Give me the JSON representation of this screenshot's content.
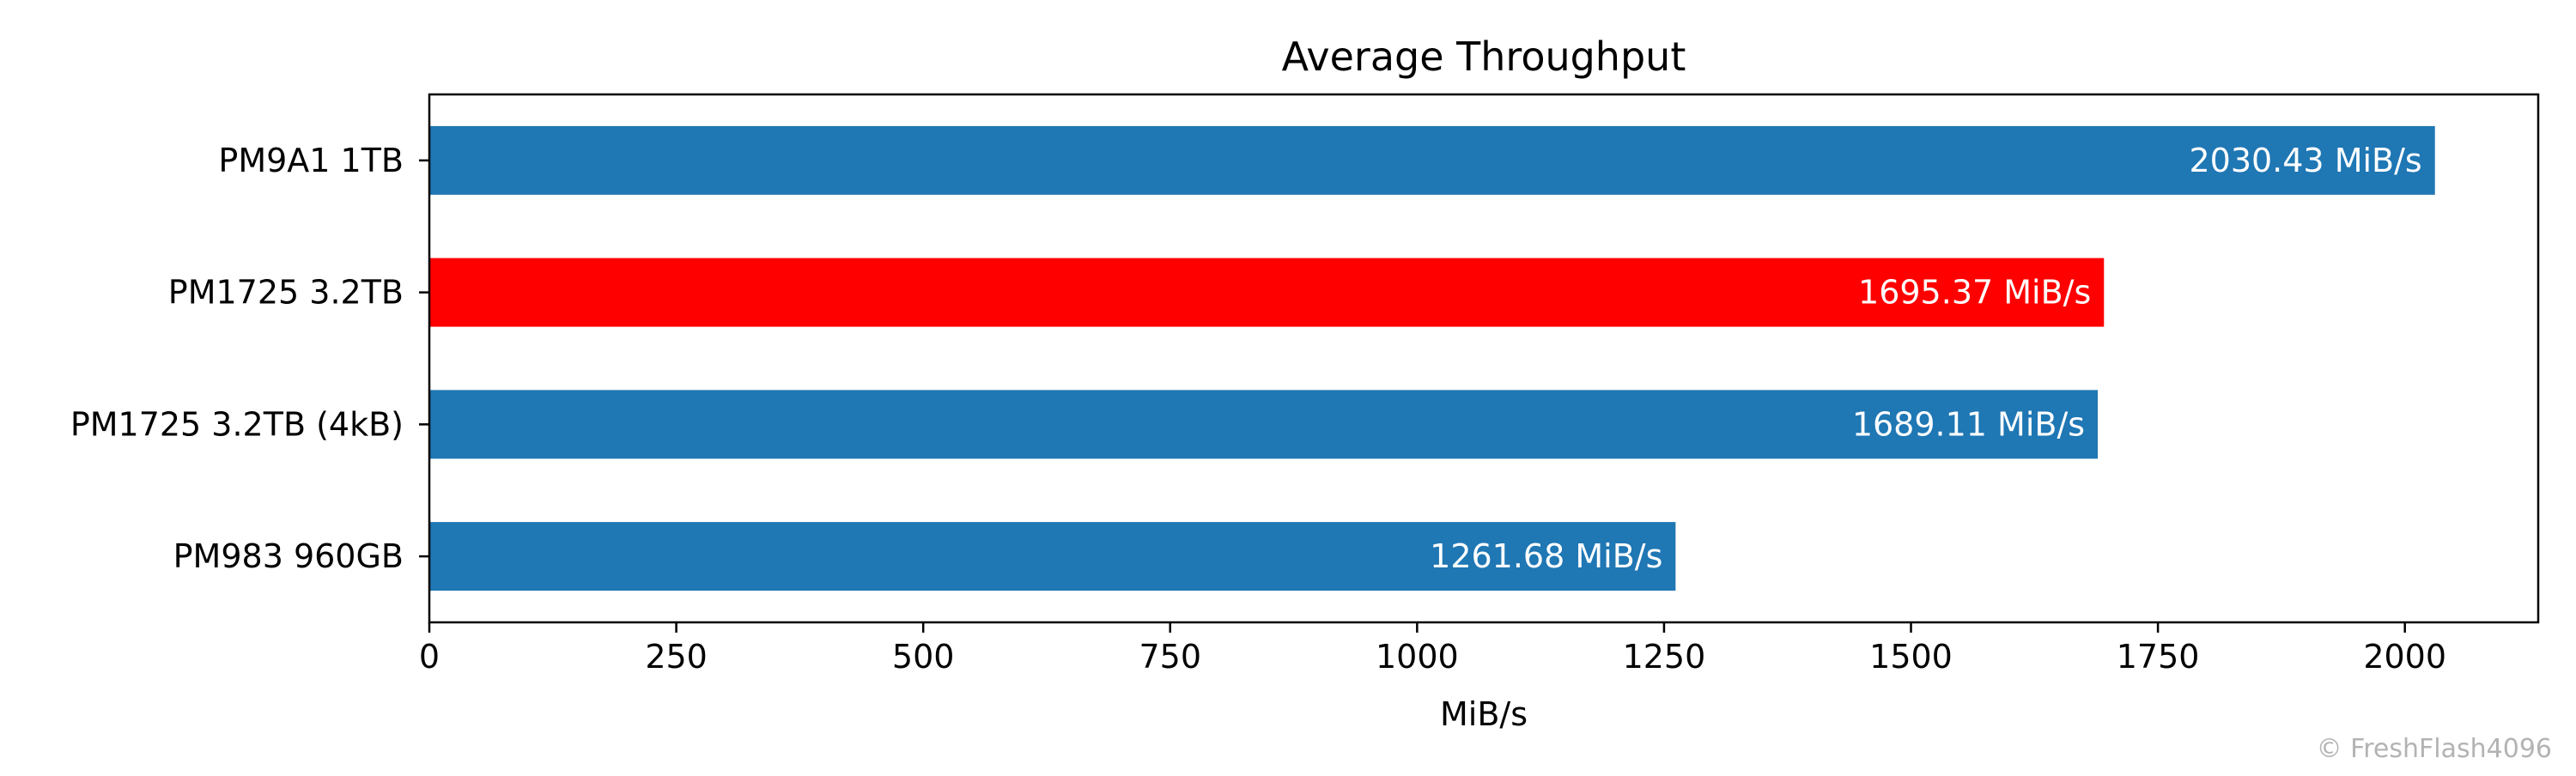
{
  "chart_data": {
    "type": "bar",
    "orientation": "horizontal",
    "title": "Average Throughput",
    "xlabel": "MiB/s",
    "ylabel": "",
    "xlim": [
      0,
      2135
    ],
    "xticks": [
      0,
      250,
      500,
      750,
      1000,
      1250,
      1500,
      1750,
      2000
    ],
    "categories": [
      "PM9A1 1TB",
      "PM1725 3.2TB",
      "PM1725 3.2TB (4kB)",
      "PM983 960GB"
    ],
    "values": [
      2030.43,
      1695.37,
      1689.11,
      1261.68
    ],
    "value_labels": [
      "2030.43 MiB/s",
      "1695.37 MiB/s",
      "1689.11 MiB/s",
      "1261.68 MiB/s"
    ],
    "bar_colors": [
      "#1f77b4",
      "#ff0000",
      "#1f77b4",
      "#1f77b4"
    ],
    "grid": false,
    "watermark": "© FreshFlash4096"
  }
}
